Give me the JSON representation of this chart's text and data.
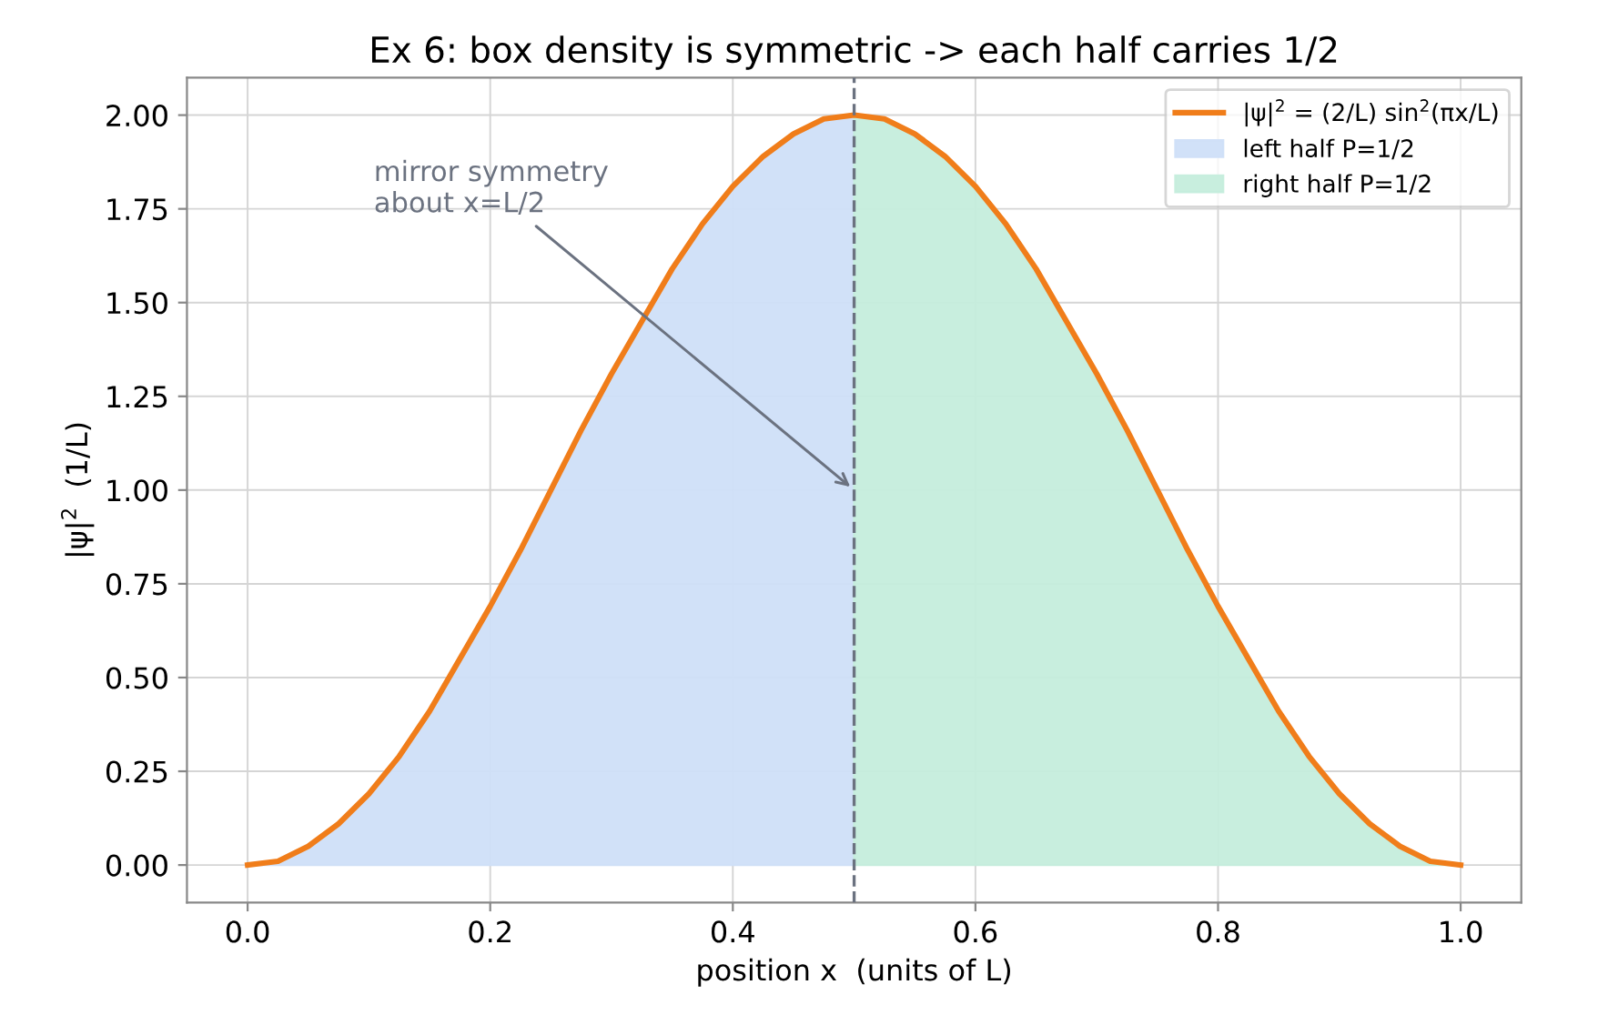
{
  "chart_data": {
    "type": "line",
    "title": "Ex 6: box density is symmetric -> each half carries 1/2",
    "xlabel": "position x  (units of L)",
    "ylabel": "|ψ|$^{2}$  (1/L)",
    "series": [
      {
        "type": "area",
        "name": "left half P=1/2",
        "color": "#cfdff8",
        "x": [
          0,
          0.025,
          0.05,
          0.075,
          0.1,
          0.125,
          0.15,
          0.175,
          0.2,
          0.225,
          0.25,
          0.275,
          0.3,
          0.325,
          0.35,
          0.375,
          0.4,
          0.425,
          0.45,
          0.475,
          0.5
        ],
        "values": [
          0,
          0.01,
          0.05,
          0.11,
          0.19,
          0.29,
          0.41,
          0.55,
          0.69,
          0.84,
          1.0,
          1.16,
          1.31,
          1.45,
          1.59,
          1.71,
          1.81,
          1.89,
          1.95,
          1.99,
          2.0
        ]
      },
      {
        "type": "area",
        "name": "right half P=1/2",
        "color": "#c5eddc",
        "x": [
          0.5,
          0.525,
          0.55,
          0.575,
          0.6,
          0.625,
          0.65,
          0.675,
          0.7,
          0.725,
          0.75,
          0.775,
          0.8,
          0.825,
          0.85,
          0.875,
          0.9,
          0.925,
          0.95,
          0.975,
          1.0
        ],
        "values": [
          2.0,
          1.99,
          1.95,
          1.89,
          1.81,
          1.71,
          1.59,
          1.45,
          1.31,
          1.16,
          1.0,
          0.84,
          0.69,
          0.55,
          0.41,
          0.29,
          0.19,
          0.11,
          0.05,
          0.01,
          0
        ]
      },
      {
        "name": "|ψ|$^{2}$ = (2/L) sin$^{2}$(πx/L)",
        "color": "#f07d1a",
        "x": [
          0,
          0.025,
          0.05,
          0.075,
          0.1,
          0.125,
          0.15,
          0.175,
          0.2,
          0.225,
          0.25,
          0.275,
          0.3,
          0.325,
          0.35,
          0.375,
          0.4,
          0.425,
          0.45,
          0.475,
          0.5,
          0.525,
          0.55,
          0.575,
          0.6,
          0.625,
          0.65,
          0.675,
          0.7,
          0.725,
          0.75,
          0.775,
          0.8,
          0.825,
          0.85,
          0.875,
          0.9,
          0.925,
          0.95,
          0.975,
          1.0
        ],
        "values": [
          0,
          0.01,
          0.05,
          0.11,
          0.19,
          0.29,
          0.41,
          0.55,
          0.69,
          0.84,
          1.0,
          1.16,
          1.31,
          1.45,
          1.59,
          1.71,
          1.81,
          1.89,
          1.95,
          1.99,
          2.0,
          1.99,
          1.95,
          1.89,
          1.81,
          1.71,
          1.59,
          1.45,
          1.31,
          1.16,
          1.0,
          0.84,
          0.69,
          0.55,
          0.41,
          0.29,
          0.19,
          0.11,
          0.05,
          0.01,
          0
        ]
      }
    ],
    "ref_lines": [
      {
        "axis": "x",
        "value": 0.5,
        "color": "#6b7280",
        "line_style": "dashed"
      }
    ],
    "annotations": [
      {
        "text": "mirror symmetry\nabout x=L/2",
        "x": 0.5,
        "y": 1.0
      }
    ],
    "xlim": [
      -0.05,
      1.05
    ],
    "ylim": [
      -0.1,
      2.1
    ],
    "xticks": [
      {
        "value": 0,
        "label": "0.0"
      },
      {
        "value": 0.2,
        "label": "0.2"
      },
      {
        "value": 0.4,
        "label": "0.4"
      },
      {
        "value": 0.6,
        "label": "0.6"
      },
      {
        "value": 0.8,
        "label": "0.8"
      },
      {
        "value": 1,
        "label": "1.0"
      }
    ],
    "yticks": [
      {
        "value": 0,
        "label": "0.00"
      },
      {
        "value": 0.25,
        "label": "0.25"
      },
      {
        "value": 0.5,
        "label": "0.50"
      },
      {
        "value": 0.75,
        "label": "0.75"
      },
      {
        "value": 1,
        "label": "1.00"
      },
      {
        "value": 1.25,
        "label": "1.25"
      },
      {
        "value": 1.5,
        "label": "1.50"
      },
      {
        "value": 1.75,
        "label": "1.75"
      },
      {
        "value": 2,
        "label": "2.00"
      }
    ],
    "grid": true,
    "legend": "top right",
    "marker": "none",
    "line_style": "solid"
  }
}
